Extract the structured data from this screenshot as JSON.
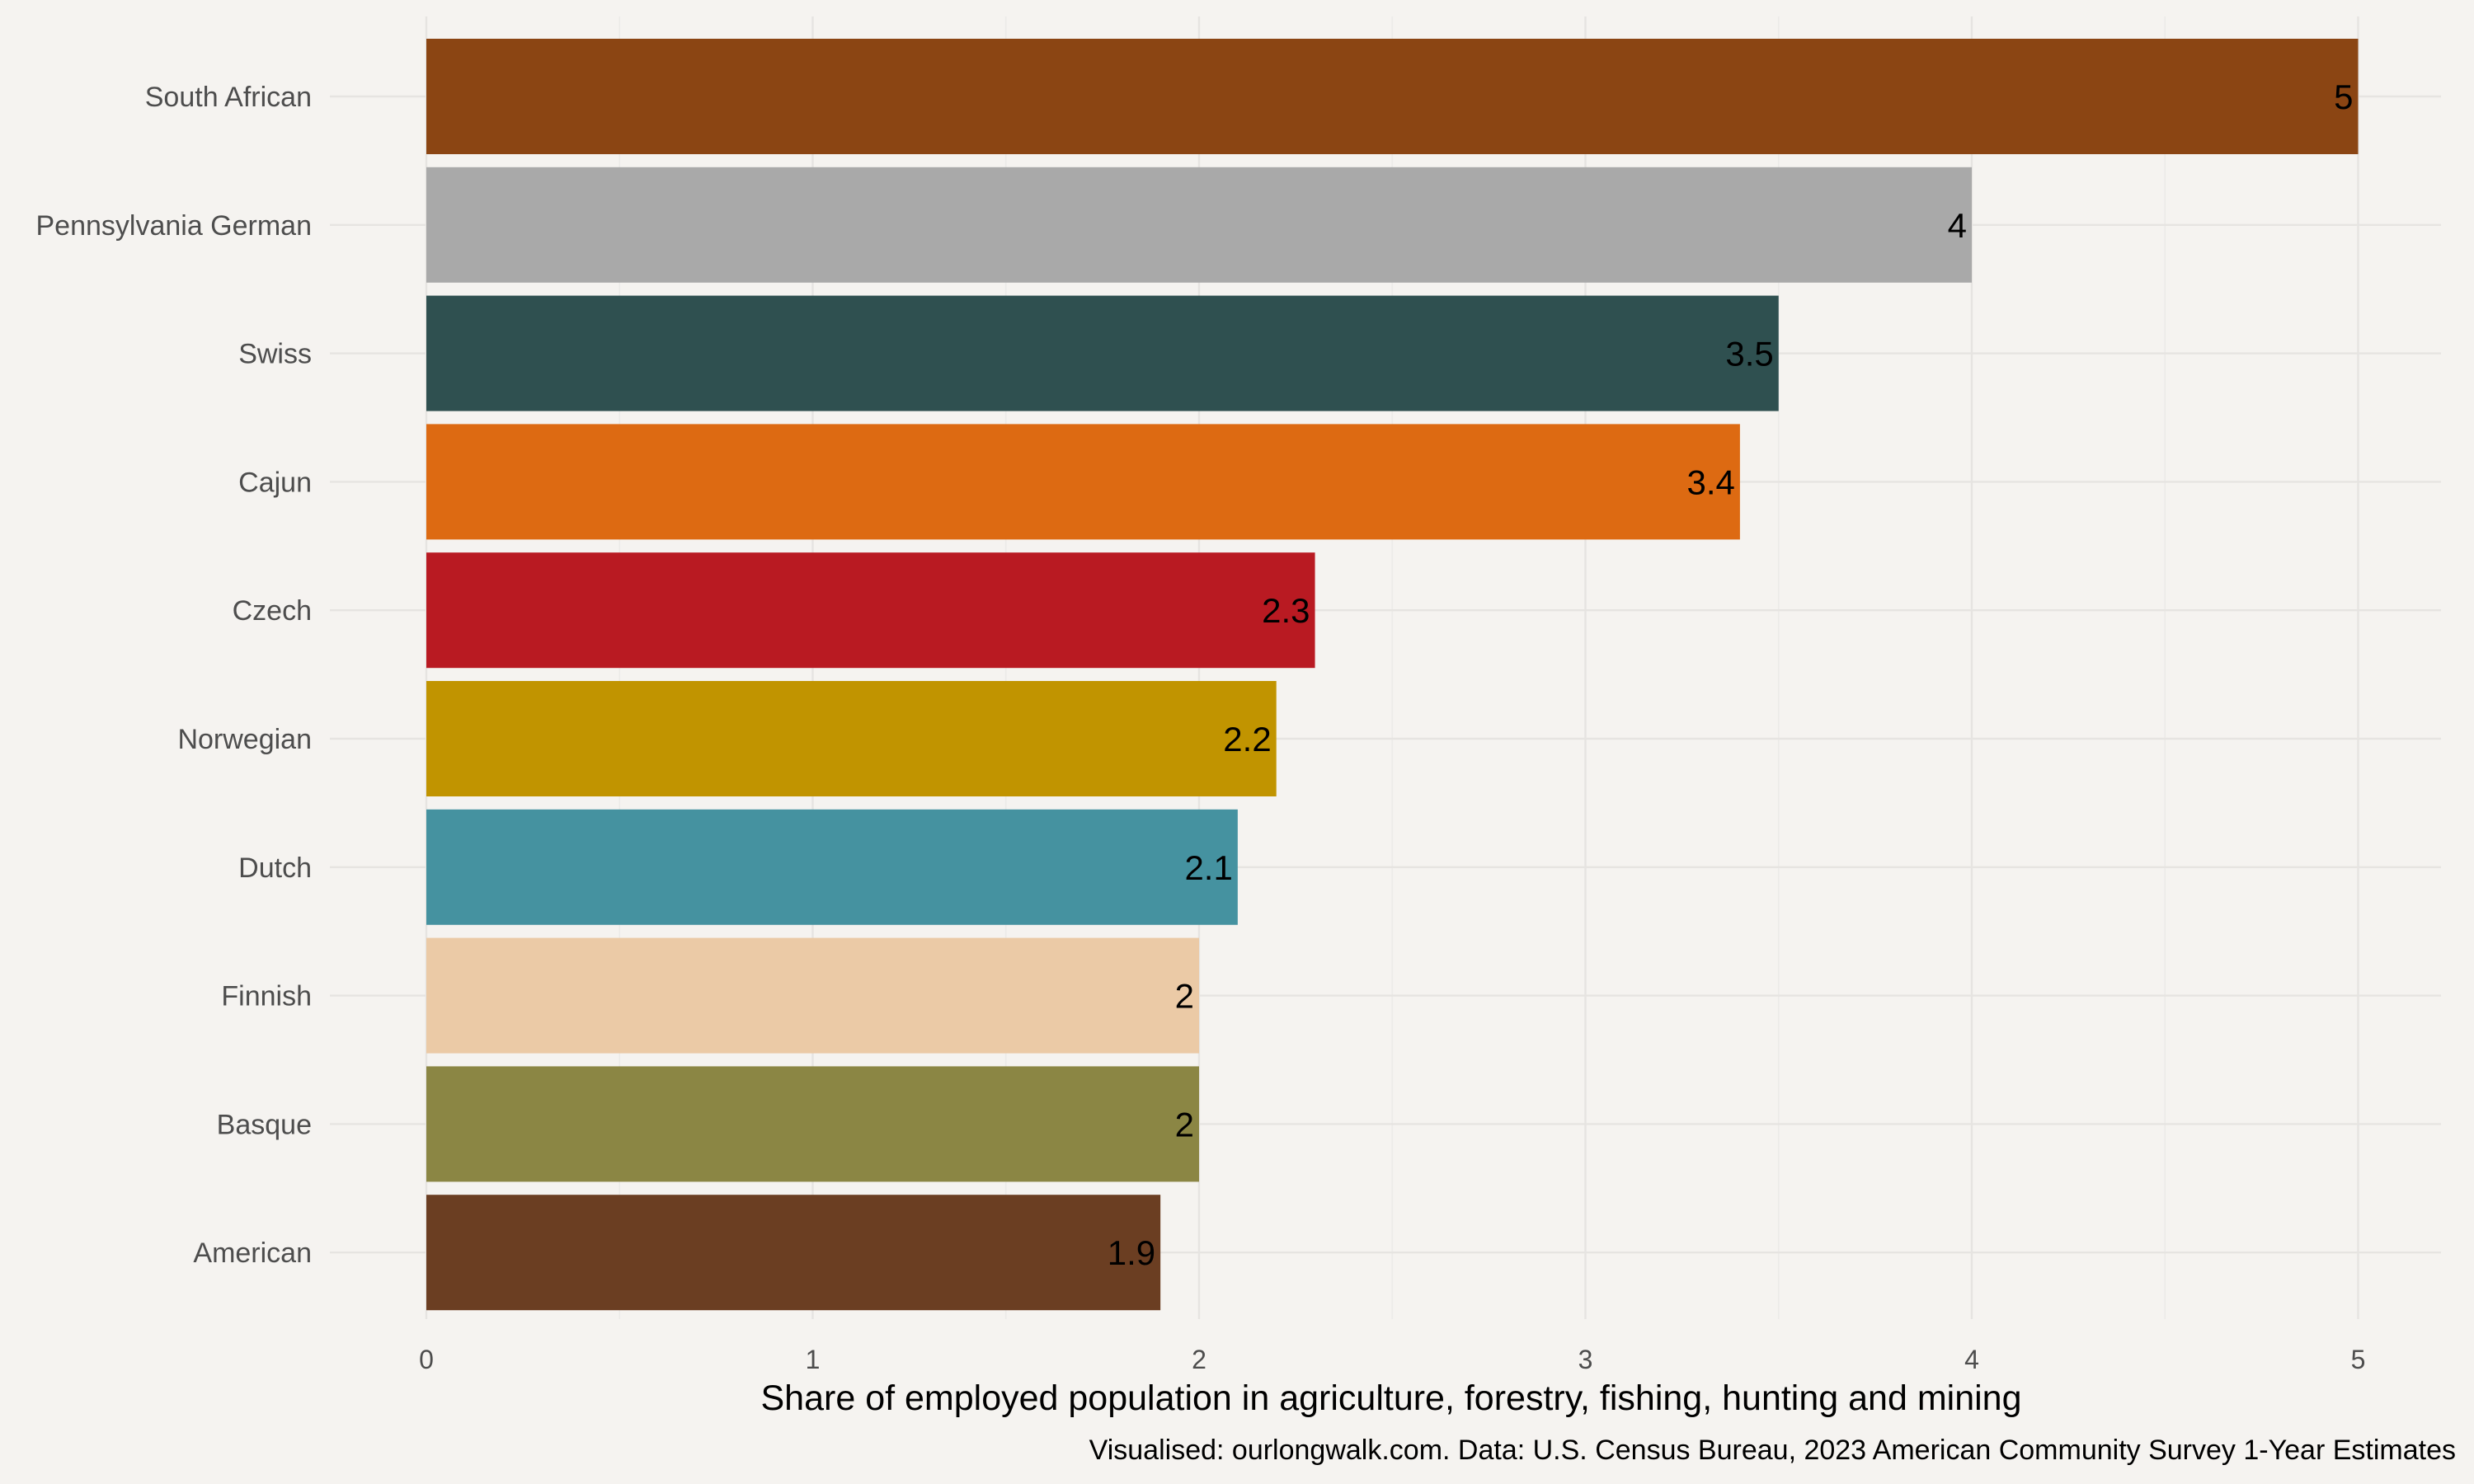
{
  "chart_data": {
    "type": "bar",
    "orientation": "horizontal",
    "categories": [
      "South African",
      "Pennsylvania German",
      "Swiss",
      "Cajun",
      "Czech",
      "Norwegian",
      "Dutch",
      "Finnish",
      "Basque",
      "American"
    ],
    "values": [
      5,
      4,
      3.5,
      3.4,
      2.3,
      2.2,
      2.1,
      2,
      2,
      1.9
    ],
    "data_labels": [
      "5",
      "4",
      "3.5",
      "3.4",
      "2.3",
      "2.2",
      "2.1",
      "2",
      "2",
      "1.9"
    ],
    "colors": [
      "#8b4513",
      "#a9a9a9",
      "#2f5050",
      "#dd6a12",
      "#b91a22",
      "#c19400",
      "#4592a0",
      "#ebcaa6",
      "#8b8644",
      "#6b3e22"
    ],
    "xlabel": "Share of employed population in agriculture, forestry, fishing, hunting and mining",
    "ylabel": "",
    "xlim": [
      0,
      5.2
    ],
    "xticks": [
      0,
      1,
      2,
      3,
      4,
      5
    ],
    "xtick_labels": [
      "0",
      "1",
      "2",
      "3",
      "4",
      "5"
    ],
    "grid": true,
    "legend": "none",
    "caption": "Visualised: ourlongwalk.com. Data: U.S. Census Bureau, 2023 American Community Survey 1-Year Estimates",
    "background": "#f5f3f0"
  }
}
